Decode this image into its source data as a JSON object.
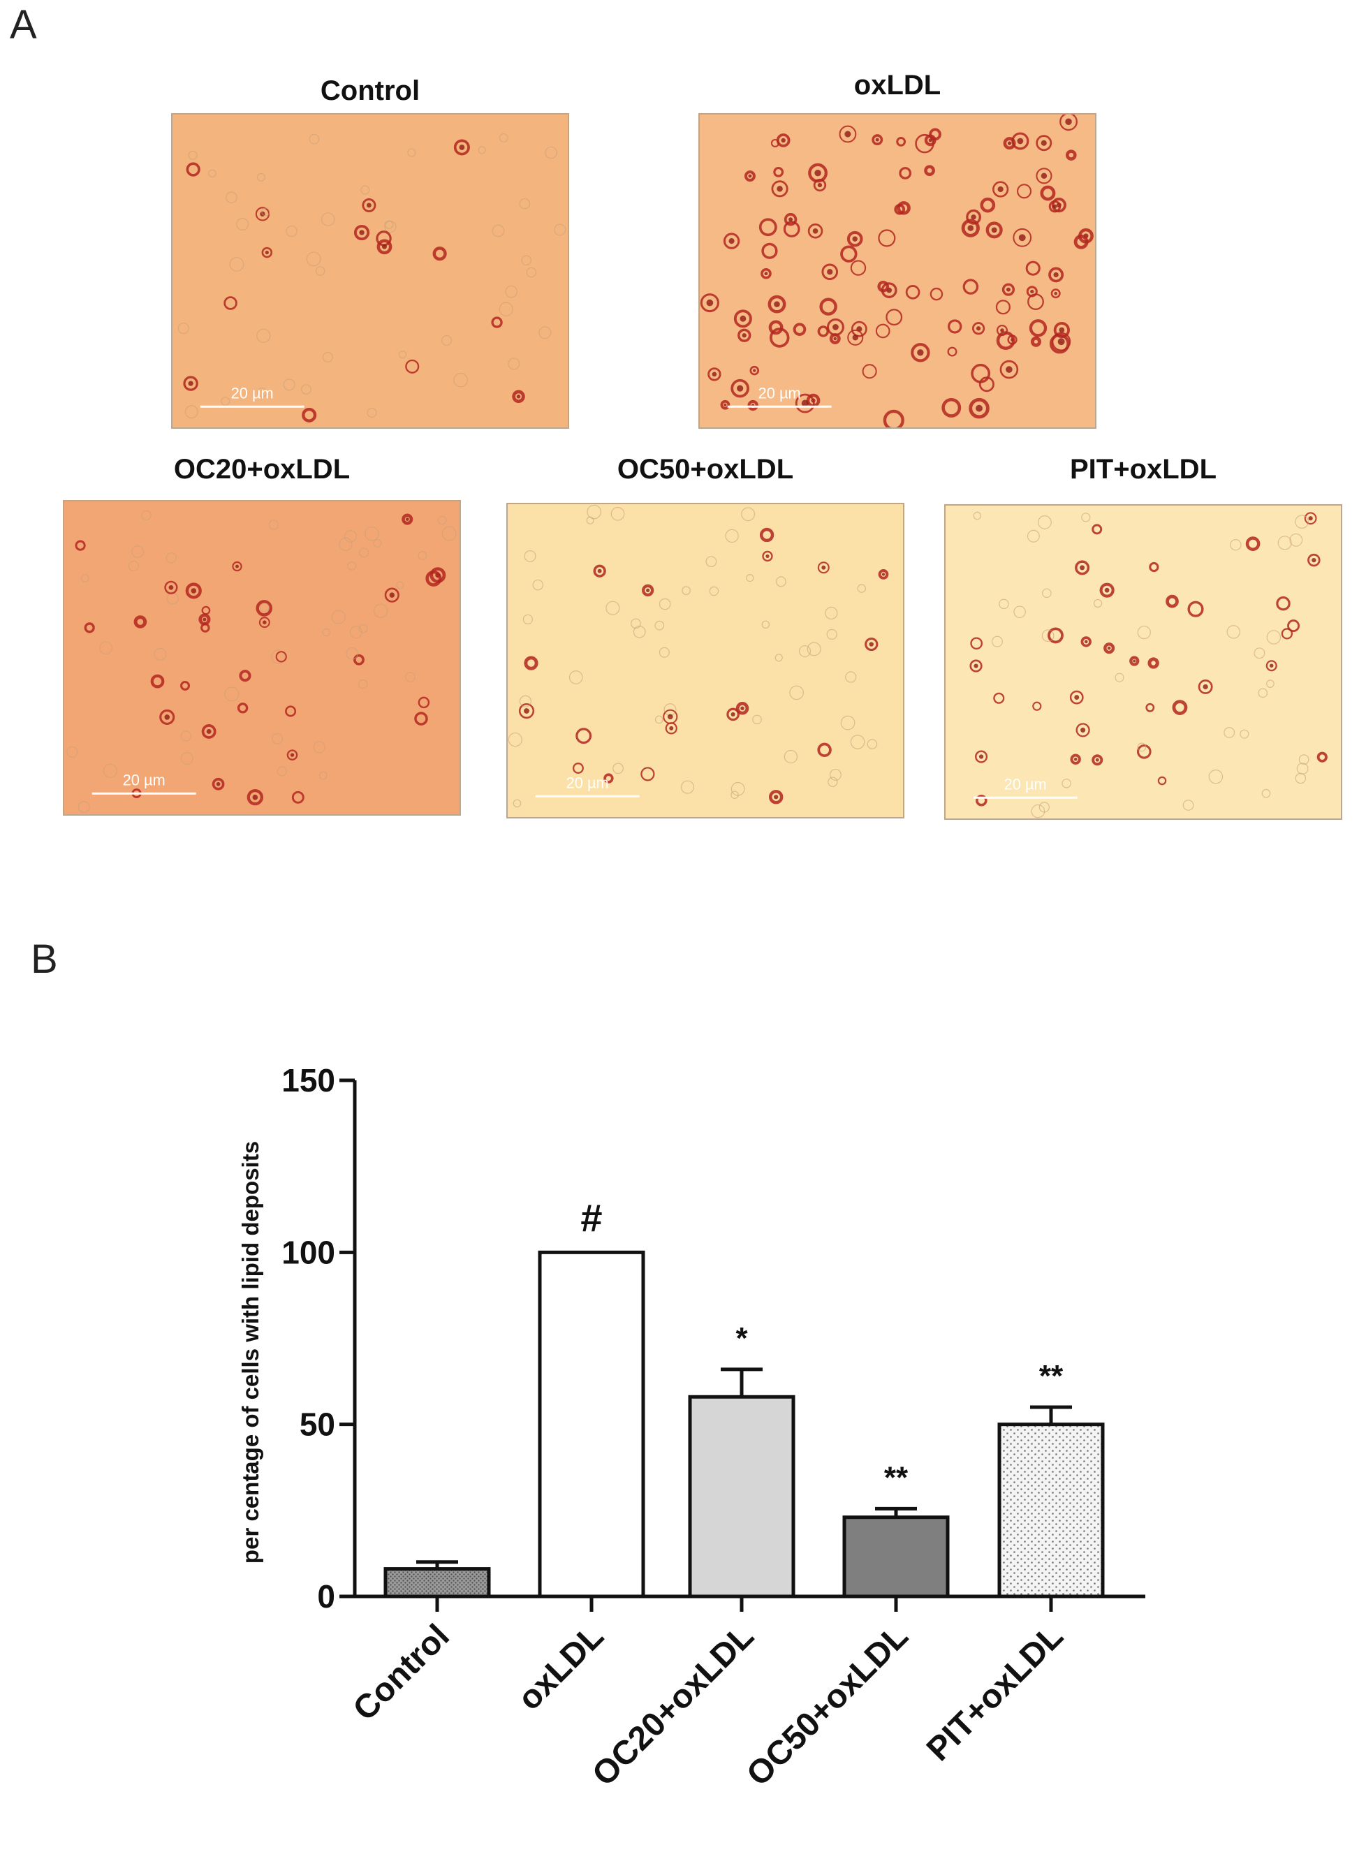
{
  "panel_a": {
    "letter": "A",
    "images": [
      {
        "title": "Control",
        "scale_label": "20 µm",
        "background": "#f3b47d",
        "stain_density": 0.25
      },
      {
        "title": "oxLDL",
        "scale_label": "20 µm",
        "background": "#f5ba85",
        "stain_density": 1.0
      },
      {
        "title": "OC20+oxLDL",
        "scale_label": "20 µm",
        "background": "#f2a674",
        "stain_density": 0.5
      },
      {
        "title": "OC50+oxLDL",
        "scale_label": "20 µm",
        "background": "#fbe0a8",
        "stain_density": 0.4
      },
      {
        "title": "PIT+oxLDL",
        "scale_label": "20 µm",
        "background": "#fbe6b4",
        "stain_density": 0.45
      }
    ]
  },
  "panel_b": {
    "letter": "B"
  },
  "chart_data": {
    "type": "bar",
    "categories": [
      "Control",
      "oxLDL",
      "OC20+oxLDL",
      "OC50+oxLDL",
      "PIT+oxLDL"
    ],
    "values": [
      8,
      100,
      58,
      23,
      50
    ],
    "errors": [
      2,
      0,
      8,
      2.5,
      5
    ],
    "significance": [
      "",
      "#",
      "*",
      "**",
      "**"
    ],
    "ylabel": "per centage of cells with lipid deposits",
    "ylim": [
      0,
      150
    ],
    "yticks": [
      0,
      50,
      100,
      150
    ],
    "bar_fills": [
      "#8c8c8c",
      "#ffffff",
      "#d6d6d6",
      "#7f7f7f",
      "#f0f0f0"
    ],
    "bar_patterns": [
      "dense-dots",
      "none",
      "none",
      "none",
      "sparse-dots"
    ],
    "grid": false,
    "legend": "none"
  }
}
